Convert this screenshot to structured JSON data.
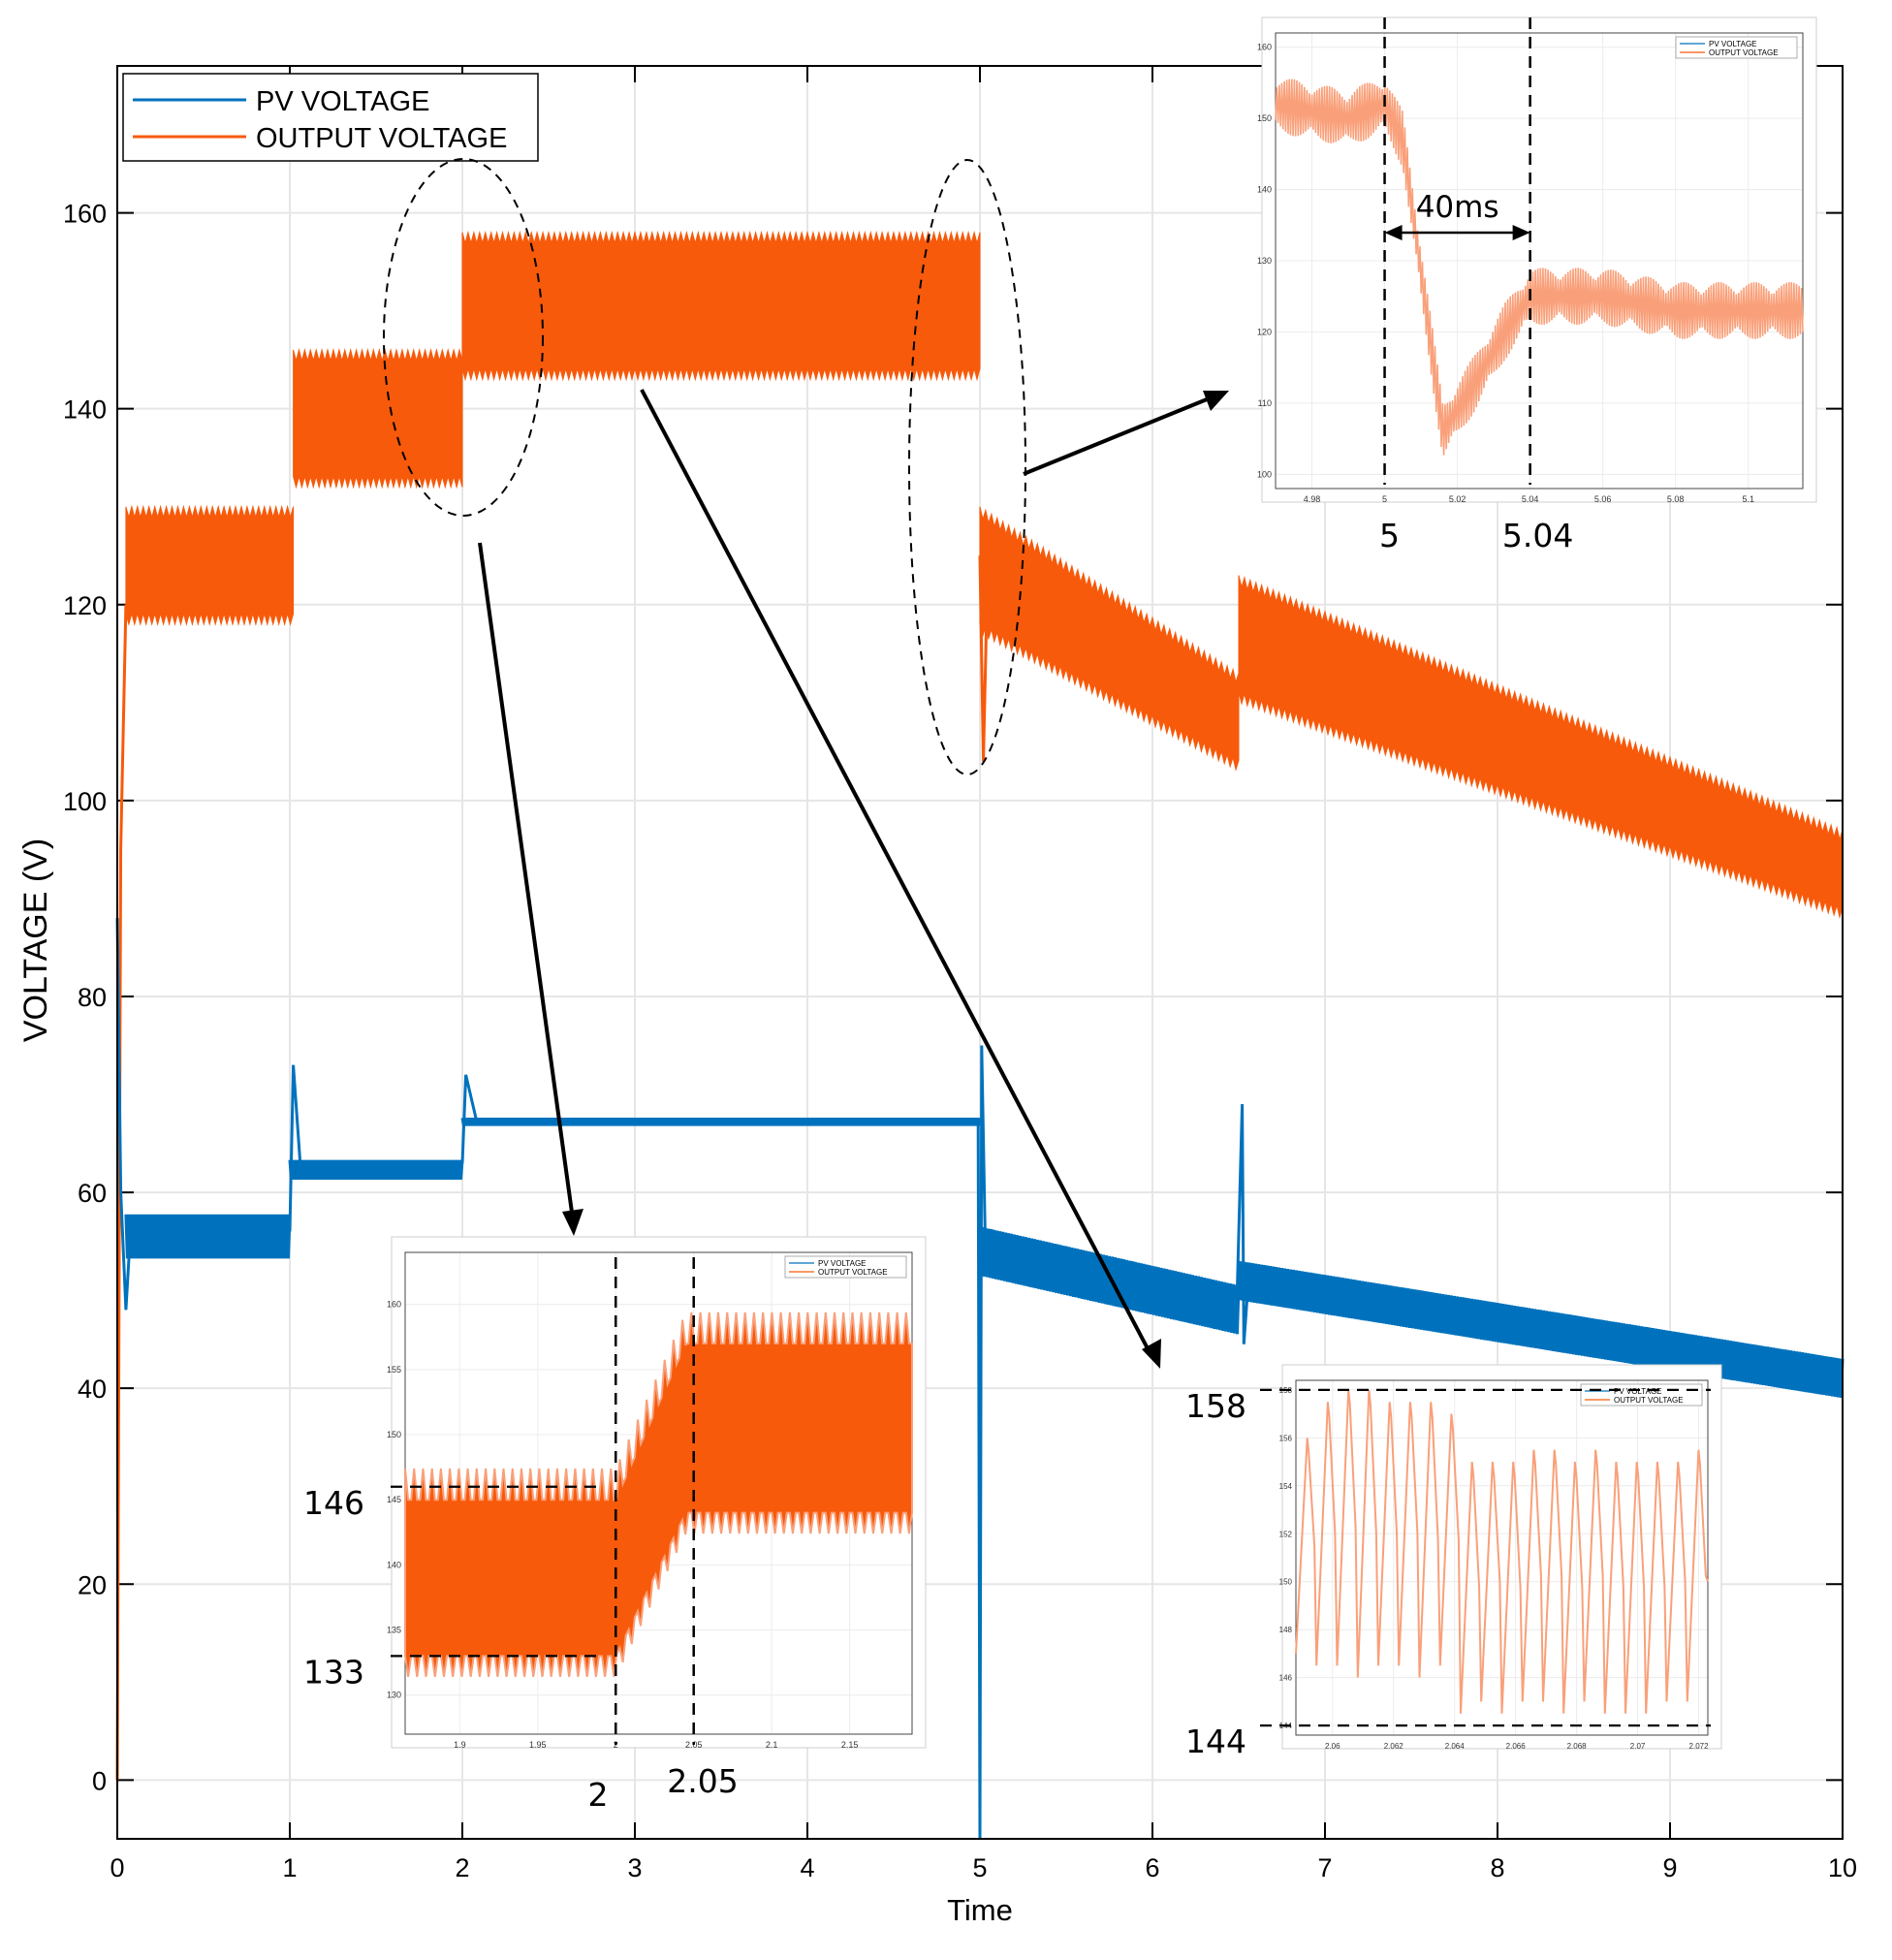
{
  "colors": {
    "pv": "#0072bd",
    "output": "#f75a0a",
    "output_light": "#f9a07a",
    "grid": "#e6e6e6",
    "axis": "#000000"
  },
  "chart_data": [
    {
      "id": "main",
      "type": "line",
      "title": "",
      "xlabel": "Time",
      "ylabel": "VOLTAGE (V)",
      "xlim": [
        0,
        10
      ],
      "ylim": [
        -6,
        175
      ],
      "xticks": [
        0,
        1,
        2,
        3,
        4,
        5,
        6,
        7,
        8,
        9,
        10
      ],
      "yticks": [
        0,
        20,
        40,
        60,
        80,
        100,
        120,
        140,
        160
      ],
      "grid": true,
      "legend_position": "top-left",
      "series": [
        {
          "name": "PV VOLTAGE",
          "color": "#0072bd",
          "segments": [
            {
              "x": [
                0.05,
                1.0
              ],
              "center": 55.5,
              "ripple": 4.5
            },
            {
              "x": [
                1.0,
                2.0
              ],
              "center": 62.3,
              "ripple": 2
            },
            {
              "x": [
                2.0,
                5.0
              ],
              "center": 67.2,
              "ripple": 0.8
            },
            {
              "x": [
                5.0,
                6.5
              ],
              "center": [
                54,
                48
              ],
              "ripple": 5
            },
            {
              "x": [
                6.5,
                10.0
              ],
              "center": [
                51,
                41
              ],
              "ripple": 4
            }
          ],
          "spikes": [
            {
              "x": 0.0,
              "y": 88
            },
            {
              "x": 0.05,
              "y": 48
            },
            {
              "x": 1.02,
              "y": 73
            },
            {
              "x": 2.02,
              "y": 72
            },
            {
              "x": 5.02,
              "y": 75
            },
            {
              "x": 5.0,
              "y": -6
            },
            {
              "x": 6.52,
              "y": 69
            },
            {
              "x": 6.52,
              "y": 44.5
            }
          ]
        },
        {
          "name": "OUTPUT VOLTAGE",
          "color": "#f75a0a",
          "segments": [
            {
              "x": [
                0.05,
                1.02
              ],
              "band": [
                118,
                130
              ]
            },
            {
              "x": [
                1.02,
                2.0
              ],
              "band": [
                132,
                146
              ]
            },
            {
              "x": [
                2.0,
                5.0
              ],
              "band": [
                143,
                158
              ]
            },
            {
              "x": [
                5.0,
                6.5
              ],
              "band_start": [
                117,
                130
              ],
              "band_end": [
                103,
                113
              ]
            },
            {
              "x": [
                6.5,
                10.0
              ],
              "band_start": [
                110,
                123
              ],
              "band_end": [
                88,
                97
              ]
            }
          ],
          "spikes": [
            {
              "x": 0.0,
              "y": 0
            },
            {
              "x": 5.02,
              "y": 104
            }
          ]
        }
      ]
    },
    {
      "id": "inset-turnoff",
      "type": "line",
      "xlim": [
        4.97,
        5.115
      ],
      "ylim": [
        98,
        162
      ],
      "xticks": [
        4.98,
        5,
        5.02,
        5.04,
        5.06,
        5.08,
        5.1
      ],
      "xtick_labels": [
        "4.98",
        "5",
        "5.02",
        "5.04",
        "5.06",
        "5.08",
        "5.1"
      ],
      "yticks": [
        100,
        110,
        120,
        130,
        140,
        150,
        160
      ],
      "legend": [
        "PV VOLTAGE",
        "OUTPUT VOLTAGE"
      ],
      "series": [
        {
          "name": "OUTPUT VOLTAGE",
          "color": "#f9a07a",
          "points": [
            [
              4.97,
              152
            ],
            [
              4.99,
              150
            ],
            [
              5.0,
              152
            ],
            [
              5.005,
              147
            ],
            [
              5.016,
              106
            ],
            [
              5.025,
              113
            ],
            [
              5.033,
              120
            ],
            [
              5.04,
              125
            ],
            [
              5.06,
              125
            ],
            [
              5.08,
              123
            ],
            [
              5.115,
              123
            ]
          ],
          "ripple": 4
        }
      ],
      "markers": {
        "lines_x": [
          5,
          5.04
        ],
        "arrow_label": "40ms",
        "x_labels": [
          "5",
          "5.04"
        ]
      }
    },
    {
      "id": "inset-step",
      "type": "line",
      "xlim": [
        1.865,
        2.19
      ],
      "ylim": [
        127,
        164
      ],
      "xticks": [
        1.9,
        1.95,
        2,
        2.05,
        2.1,
        2.15
      ],
      "xtick_labels": [
        "1.9",
        "1.95",
        "2",
        "2.05",
        "2.1",
        "2.15"
      ],
      "yticks": [
        130,
        135,
        140,
        145,
        150,
        155,
        160
      ],
      "legend": [
        "PV VOLTAGE",
        "OUTPUT VOLTAGE"
      ],
      "series": [
        {
          "name": "OUTPUT VOLTAGE",
          "color": "#f75a0a",
          "band_before": [
            133,
            145
          ],
          "band_after": [
            144,
            157
          ],
          "step": [
            2,
            2.045
          ]
        }
      ],
      "markers": {
        "lines_x": [
          2,
          2.05
        ],
        "levels": [
          146,
          133
        ],
        "level_labels": [
          "146",
          "133"
        ],
        "x_labels": [
          "2",
          "2.05"
        ]
      }
    },
    {
      "id": "inset-zoom",
      "type": "line",
      "xlim": [
        2.0588,
        2.0723
      ],
      "ylim": [
        143.6,
        158.4
      ],
      "xticks": [
        2.06,
        2.062,
        2.064,
        2.066,
        2.068,
        2.07,
        2.072
      ],
      "xtick_labels": [
        "2.06",
        "2.062",
        "2.064",
        "2.066",
        "2.068",
        "2.07",
        "2.072"
      ],
      "yticks": [
        144,
        146,
        148,
        150,
        152,
        154,
        156,
        158
      ],
      "legend": [
        "PV VOLTAGE",
        "OUTPUT VOLTAGE"
      ],
      "series": [
        {
          "name": "OUTPUT VOLTAGE",
          "color": "#f9a07a",
          "peaks": [
            156,
            157.5,
            158,
            158,
            157.5,
            157.5,
            157.5,
            157,
            155,
            155,
            155,
            155.5,
            155.5,
            155,
            155.5,
            155,
            155,
            155,
            155,
            155.5
          ],
          "troughs": [
            147,
            146.5,
            146.5,
            146,
            146.5,
            146.5,
            146,
            146.5,
            144.5,
            145,
            144.5,
            145,
            145,
            144.5,
            145,
            144.5,
            144.5,
            144.5,
            145,
            145
          ]
        }
      ],
      "markers": {
        "levels": [
          158,
          144
        ],
        "level_labels": [
          "158",
          "144"
        ]
      }
    }
  ]
}
